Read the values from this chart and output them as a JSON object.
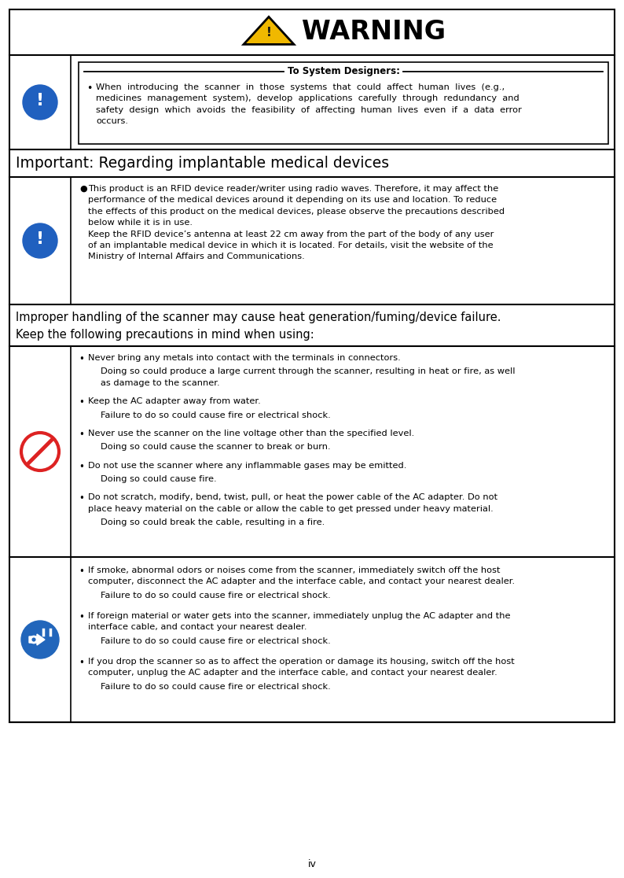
{
  "page_width": 7.94,
  "page_height": 11.16,
  "dpi": 100,
  "bg_color": "#ffffff",
  "border_color": "#000000",
  "warning_title": "WARNING",
  "section1_title": "To System Designers:",
  "section1_text": "When  introducing  the  scanner  in  those  systems  that  could  affect  human  lives  (e.g.,\nmedicines  management  system),  develop  applications  carefully  through  redundancy  and\nsafety  design  which  avoids  the  feasibility  of  affecting  human  lives  even  if  a  data  error\noccurs.",
  "important_header": "Important: Regarding implantable medical devices",
  "section2_bullet": "This product is an RFID device reader/writer using radio waves. Therefore, it may affect the\nperformance of the medical devices around it depending on its use and location. To reduce\nthe effects of this product on the medical devices, please observe the precautions described\nbelow while it is in use.\nKeep the RFID device’s antenna at least 22 cm away from the part of the body of any user\nof an implantable medical device in which it is located. For details, visit the website of the\nMinistry of Internal Affairs and Communications.",
  "caution_header_line1": "Improper handling of the scanner may cause heat generation/fuming/device failure.",
  "caution_header_line2": "Keep the following precautions in mind when using:",
  "caution_items": [
    {
      "bullet": "Never bring any metals into contact with the terminals in connectors.",
      "sub": "Doing so could produce a large current through the scanner, resulting in heat or fire, as well\nas damage to the scanner."
    },
    {
      "bullet": "Keep the AC adapter away from water.",
      "sub": "Failure to do so could cause fire or electrical shock."
    },
    {
      "bullet": "Never use the scanner on the line voltage other than the specified level.",
      "sub": "Doing so could cause the scanner to break or burn."
    },
    {
      "bullet": "Do not use the scanner where any inflammable gases may be emitted.",
      "sub": "Doing so could cause fire."
    },
    {
      "bullet": "Do not scratch, modify, bend, twist, pull, or heat the power cable of the AC adapter. Do not\nplace heavy material on the cable or allow the cable to get pressed under heavy material.",
      "sub": "Doing so could break the cable, resulting in a fire."
    }
  ],
  "electrical_items": [
    {
      "bullet": "If smoke, abnormal odors or noises come from the scanner, immediately switch off the host\ncomputer, disconnect the AC adapter and the interface cable, and contact your nearest dealer.",
      "sub": "Failure to do so could cause fire or electrical shock."
    },
    {
      "bullet": "If foreign material or water gets into the scanner, immediately unplug the AC adapter and the\ninterface cable, and contact your nearest dealer.",
      "sub": "Failure to do so could cause fire or electrical shock."
    },
    {
      "bullet": "If you drop the scanner so as to affect the operation or damage its housing, switch off the host\ncomputer, unplug the AC adapter and the interface cable, and contact your nearest dealer.",
      "sub": "Failure to do so could cause fire or electrical shock."
    }
  ],
  "page_number": "iv",
  "icon_blue": "#2060bf",
  "triangle_fill": "#f0b800",
  "triangle_border": "#000000",
  "no_icon_red": "#dd2222",
  "elec_icon_blue": "#2266bb",
  "text_color": "#000000",
  "lw_outer": 1.5,
  "lw_inner": 1.2,
  "lw_divider": 1.2
}
